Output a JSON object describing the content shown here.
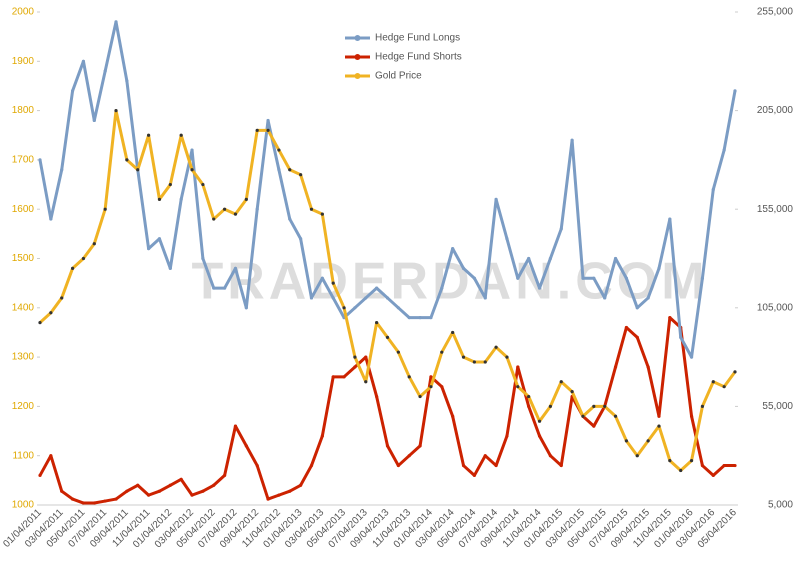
{
  "chart_data": {
    "type": "line",
    "watermark": "TRADERDAN.COM",
    "categories": [
      "01/04/2011",
      null,
      "03/04/2011",
      null,
      "05/04/2011",
      null,
      "07/04/2011",
      null,
      "09/04/2011",
      null,
      "11/04/2011",
      null,
      "01/04/2012",
      null,
      "03/04/2012",
      null,
      "05/04/2012",
      null,
      "07/04/2012",
      null,
      "09/04/2012",
      null,
      "11/04/2012",
      null,
      "01/04/2013",
      null,
      "03/04/2013",
      null,
      "05/04/2013",
      null,
      "07/04/2013",
      null,
      "09/04/2013",
      null,
      "11/04/2013",
      null,
      "01/04/2014",
      null,
      "03/04/2014",
      null,
      "05/04/2014",
      null,
      "07/04/2014",
      null,
      "09/04/2014",
      null,
      "11/04/2014",
      null,
      "01/04/2015",
      null,
      "03/04/2015",
      null,
      "05/04/2015",
      null,
      "07/04/2015",
      null,
      "09/04/2015",
      null,
      "11/04/2015",
      null,
      "01/04/2016",
      null,
      "03/04/2016",
      null,
      "05/04/2016"
    ],
    "series": [
      {
        "name": "Hedge Fund Longs",
        "color": "#7b9cc4",
        "axis": "y2",
        "values": [
          180000,
          150000,
          175000,
          215000,
          230000,
          200000,
          225000,
          250000,
          220000,
          175000,
          135000,
          140000,
          125000,
          160000,
          185000,
          130000,
          115000,
          115000,
          125000,
          105000,
          155000,
          200000,
          175000,
          150000,
          140000,
          110000,
          120000,
          110000,
          100000,
          105000,
          110000,
          115000,
          110000,
          105000,
          100000,
          100000,
          100000,
          115000,
          135000,
          125000,
          120000,
          110000,
          160000,
          140000,
          120000,
          130000,
          115000,
          130000,
          145000,
          190000,
          120000,
          120000,
          110000,
          130000,
          120000,
          105000,
          110000,
          125000,
          150000,
          90000,
          80000,
          120000,
          165000,
          185000,
          215000
        ]
      },
      {
        "name": "Hedge Fund Shorts",
        "color": "#cc2200",
        "axis": "y2",
        "values": [
          20000,
          30000,
          12000,
          8000,
          6000,
          6000,
          7000,
          8000,
          12000,
          15000,
          10000,
          12000,
          15000,
          18000,
          10000,
          12000,
          15000,
          20000,
          45000,
          35000,
          25000,
          8000,
          10000,
          12000,
          15000,
          25000,
          40000,
          70000,
          70000,
          75000,
          80000,
          60000,
          35000,
          25000,
          30000,
          35000,
          70000,
          65000,
          50000,
          25000,
          20000,
          30000,
          25000,
          40000,
          75000,
          55000,
          40000,
          30000,
          25000,
          60000,
          50000,
          45000,
          55000,
          75000,
          95000,
          90000,
          75000,
          50000,
          100000,
          95000,
          50000,
          25000,
          20000,
          25000,
          25000
        ]
      },
      {
        "name": "Gold Price",
        "color": "#f0b323",
        "values": [
          1370,
          1390,
          1420,
          1480,
          1500,
          1530,
          1600,
          1800,
          1700,
          1680,
          1750,
          1620,
          1650,
          1750,
          1680,
          1650,
          1580,
          1600,
          1590,
          1620,
          1760,
          1760,
          1720,
          1680,
          1670,
          1600,
          1590,
          1450,
          1400,
          1300,
          1250,
          1370,
          1340,
          1310,
          1260,
          1220,
          1240,
          1310,
          1350,
          1300,
          1290,
          1290,
          1320,
          1300,
          1240,
          1220,
          1170,
          1200,
          1250,
          1230,
          1180,
          1200,
          1200,
          1180,
          1130,
          1100,
          1130,
          1160,
          1090,
          1070,
          1090,
          1200,
          1250,
          1240,
          1270
        ]
      }
    ],
    "ylim": [
      1000,
      2000
    ],
    "yticks": [
      1000,
      1100,
      1200,
      1300,
      1400,
      1500,
      1600,
      1700,
      1800,
      1900,
      2000
    ],
    "y2lim": [
      5000,
      255000
    ],
    "y2ticks": [
      {
        "value": 5000,
        "label": "5,000"
      },
      {
        "value": 55000,
        "label": "55,000"
      },
      {
        "value": 105000,
        "label": "105,000"
      },
      {
        "value": 155000,
        "label": "155,000"
      },
      {
        "value": 205000,
        "label": "205,000"
      },
      {
        "value": 255000,
        "label": "255,000"
      }
    ],
    "ytick_color": "#e0a800",
    "legend": "top"
  }
}
